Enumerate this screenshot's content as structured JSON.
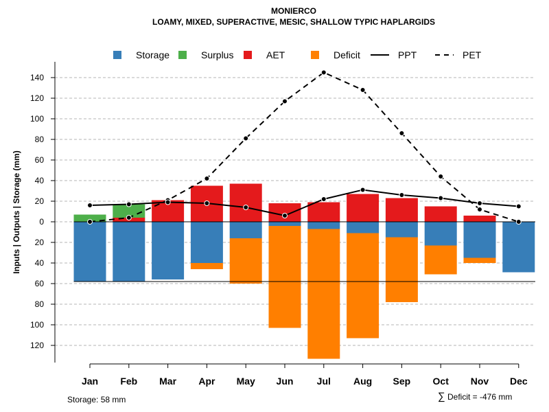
{
  "chart_data": {
    "type": "bar",
    "title": "MONIERCO",
    "subtitle": "LOAMY, MIXED, SUPERACTIVE, MESIC, SHALLOW TYPIC HAPLARGIDS",
    "ylabel": "Inputs | Outputs | Storage    (mm)",
    "categories": [
      "Jan",
      "Feb",
      "Mar",
      "Apr",
      "May",
      "Jun",
      "Jul",
      "Aug",
      "Sep",
      "Oct",
      "Nov",
      "Dec"
    ],
    "ylim": [
      -140,
      145
    ],
    "yticks_up": [
      "20",
      "40",
      "60",
      "80",
      "100",
      "120",
      "140"
    ],
    "yticks_down": [
      "0",
      "20",
      "40",
      "60",
      "80",
      "100",
      "120"
    ],
    "storage_capacity": 58,
    "legend": [
      {
        "name": "Storage",
        "kind": "box",
        "color": "#377EB8"
      },
      {
        "name": "Surplus",
        "kind": "box",
        "color": "#4DAF4A"
      },
      {
        "name": "AET",
        "kind": "box",
        "color": "#E41A1C"
      },
      {
        "name": "Deficit",
        "kind": "box",
        "color": "#FF7F00"
      },
      {
        "name": "PPT",
        "kind": "solid"
      },
      {
        "name": "PET",
        "kind": "dashed"
      }
    ],
    "series": [
      {
        "name": "Storage",
        "values": [
          58,
          58,
          56,
          40,
          16,
          4,
          7,
          11,
          15,
          23,
          35,
          49
        ]
      },
      {
        "name": "Surplus",
        "values": [
          7,
          13,
          0,
          0,
          0,
          0,
          0,
          0,
          0,
          0,
          0,
          0
        ]
      },
      {
        "name": "AET",
        "values": [
          0,
          4,
          21,
          35,
          37,
          18,
          19,
          27,
          23,
          15,
          6,
          0
        ]
      },
      {
        "name": "Deficit",
        "values": [
          0,
          0,
          0,
          6,
          44,
          99,
          126,
          102,
          63,
          28,
          5,
          0
        ]
      },
      {
        "name": "PPT",
        "values": [
          16,
          17,
          19,
          18,
          14,
          6,
          22,
          31,
          26,
          23,
          18,
          15
        ]
      },
      {
        "name": "PET",
        "values": [
          0,
          4,
          21,
          42,
          81,
          117,
          145,
          128,
          86,
          44,
          12,
          0
        ]
      }
    ]
  },
  "footer": {
    "storage_text": "Storage: 58 mm",
    "deficit_symbol": "∑",
    "deficit_text": "Deficit = -476 mm"
  }
}
